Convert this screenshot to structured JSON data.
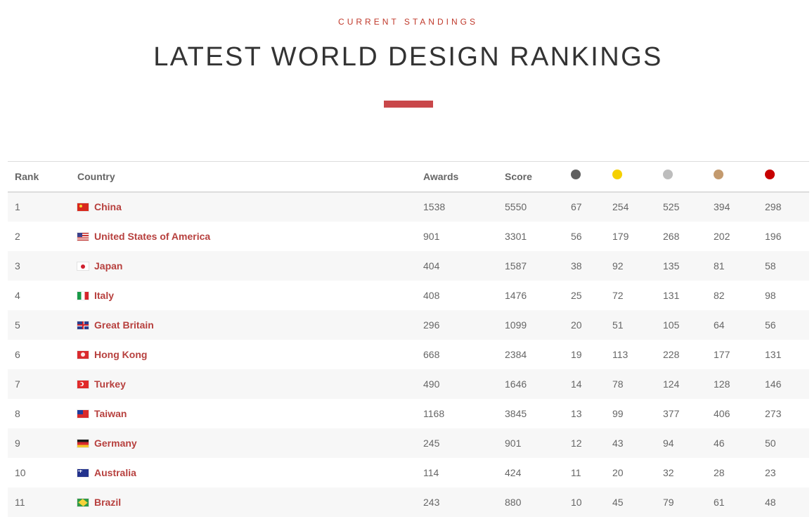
{
  "header": {
    "eyebrow": "CURRENT STANDINGS",
    "title": "LATEST WORLD DESIGN RANKINGS"
  },
  "colors": {
    "accent": "#c9474a",
    "country_link": "#b7403e",
    "medal_platinum": "#5f5f5f",
    "medal_gold": "#f5d000",
    "medal_silver": "#bdbdbd",
    "medal_bronze": "#c39a6e",
    "medal_red": "#c70000"
  },
  "table": {
    "columns": {
      "rank": "Rank",
      "country": "Country",
      "awards": "Awards",
      "score": "Score"
    },
    "medal_columns": [
      "platinum-medal-icon",
      "gold-medal-icon",
      "silver-medal-icon",
      "bronze-medal-icon",
      "red-medal-icon"
    ],
    "rows": [
      {
        "rank": "1",
        "flag": "flag-cn",
        "country": "China",
        "awards": "1538",
        "score": "5550",
        "platinum": "67",
        "gold": "254",
        "silver": "525",
        "bronze": "394",
        "red": "298"
      },
      {
        "rank": "2",
        "flag": "flag-us",
        "country": "United States of America",
        "awards": "901",
        "score": "3301",
        "platinum": "56",
        "gold": "179",
        "silver": "268",
        "bronze": "202",
        "red": "196"
      },
      {
        "rank": "3",
        "flag": "flag-jp",
        "country": "Japan",
        "awards": "404",
        "score": "1587",
        "platinum": "38",
        "gold": "92",
        "silver": "135",
        "bronze": "81",
        "red": "58"
      },
      {
        "rank": "4",
        "flag": "flag-it",
        "country": "Italy",
        "awards": "408",
        "score": "1476",
        "platinum": "25",
        "gold": "72",
        "silver": "131",
        "bronze": "82",
        "red": "98"
      },
      {
        "rank": "5",
        "flag": "flag-gb",
        "country": "Great Britain",
        "awards": "296",
        "score": "1099",
        "platinum": "20",
        "gold": "51",
        "silver": "105",
        "bronze": "64",
        "red": "56"
      },
      {
        "rank": "6",
        "flag": "flag-hk",
        "country": "Hong Kong",
        "awards": "668",
        "score": "2384",
        "platinum": "19",
        "gold": "113",
        "silver": "228",
        "bronze": "177",
        "red": "131"
      },
      {
        "rank": "7",
        "flag": "flag-tr",
        "country": "Turkey",
        "awards": "490",
        "score": "1646",
        "platinum": "14",
        "gold": "78",
        "silver": "124",
        "bronze": "128",
        "red": "146"
      },
      {
        "rank": "8",
        "flag": "flag-tw",
        "country": "Taiwan",
        "awards": "1168",
        "score": "3845",
        "platinum": "13",
        "gold": "99",
        "silver": "377",
        "bronze": "406",
        "red": "273"
      },
      {
        "rank": "9",
        "flag": "flag-de",
        "country": "Germany",
        "awards": "245",
        "score": "901",
        "platinum": "12",
        "gold": "43",
        "silver": "94",
        "bronze": "46",
        "red": "50"
      },
      {
        "rank": "10",
        "flag": "flag-au",
        "country": "Australia",
        "awards": "114",
        "score": "424",
        "platinum": "11",
        "gold": "20",
        "silver": "32",
        "bronze": "28",
        "red": "23"
      },
      {
        "rank": "11",
        "flag": "flag-br",
        "country": "Brazil",
        "awards": "243",
        "score": "880",
        "platinum": "10",
        "gold": "45",
        "silver": "79",
        "bronze": "61",
        "red": "48"
      }
    ]
  }
}
